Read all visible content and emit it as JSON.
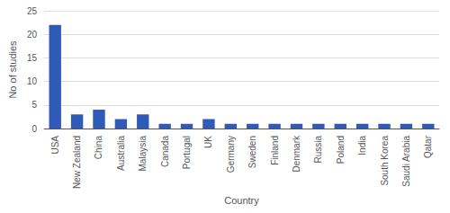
{
  "chart_data": {
    "type": "bar",
    "categories": [
      "USA",
      "New Zealand",
      "China",
      "Australia",
      "Malaysia",
      "Canada",
      "Portugal",
      "UK",
      "Germany",
      "Sweden",
      "Finland",
      "Denmark",
      "Russia",
      "Poland",
      "India",
      "South Korea",
      "Saudi Arabia",
      "Qatar"
    ],
    "values": [
      22,
      3,
      4,
      2,
      3,
      1,
      1,
      2,
      1,
      1,
      1,
      1,
      1,
      1,
      1,
      1,
      1,
      1
    ],
    "color": "#2f5bb7",
    "xlabel": "Country",
    "ylabel": "No of studies",
    "ylim": [
      0,
      25
    ],
    "yticks": [
      0,
      5,
      10,
      15,
      20,
      25
    ],
    "grid": true
  }
}
